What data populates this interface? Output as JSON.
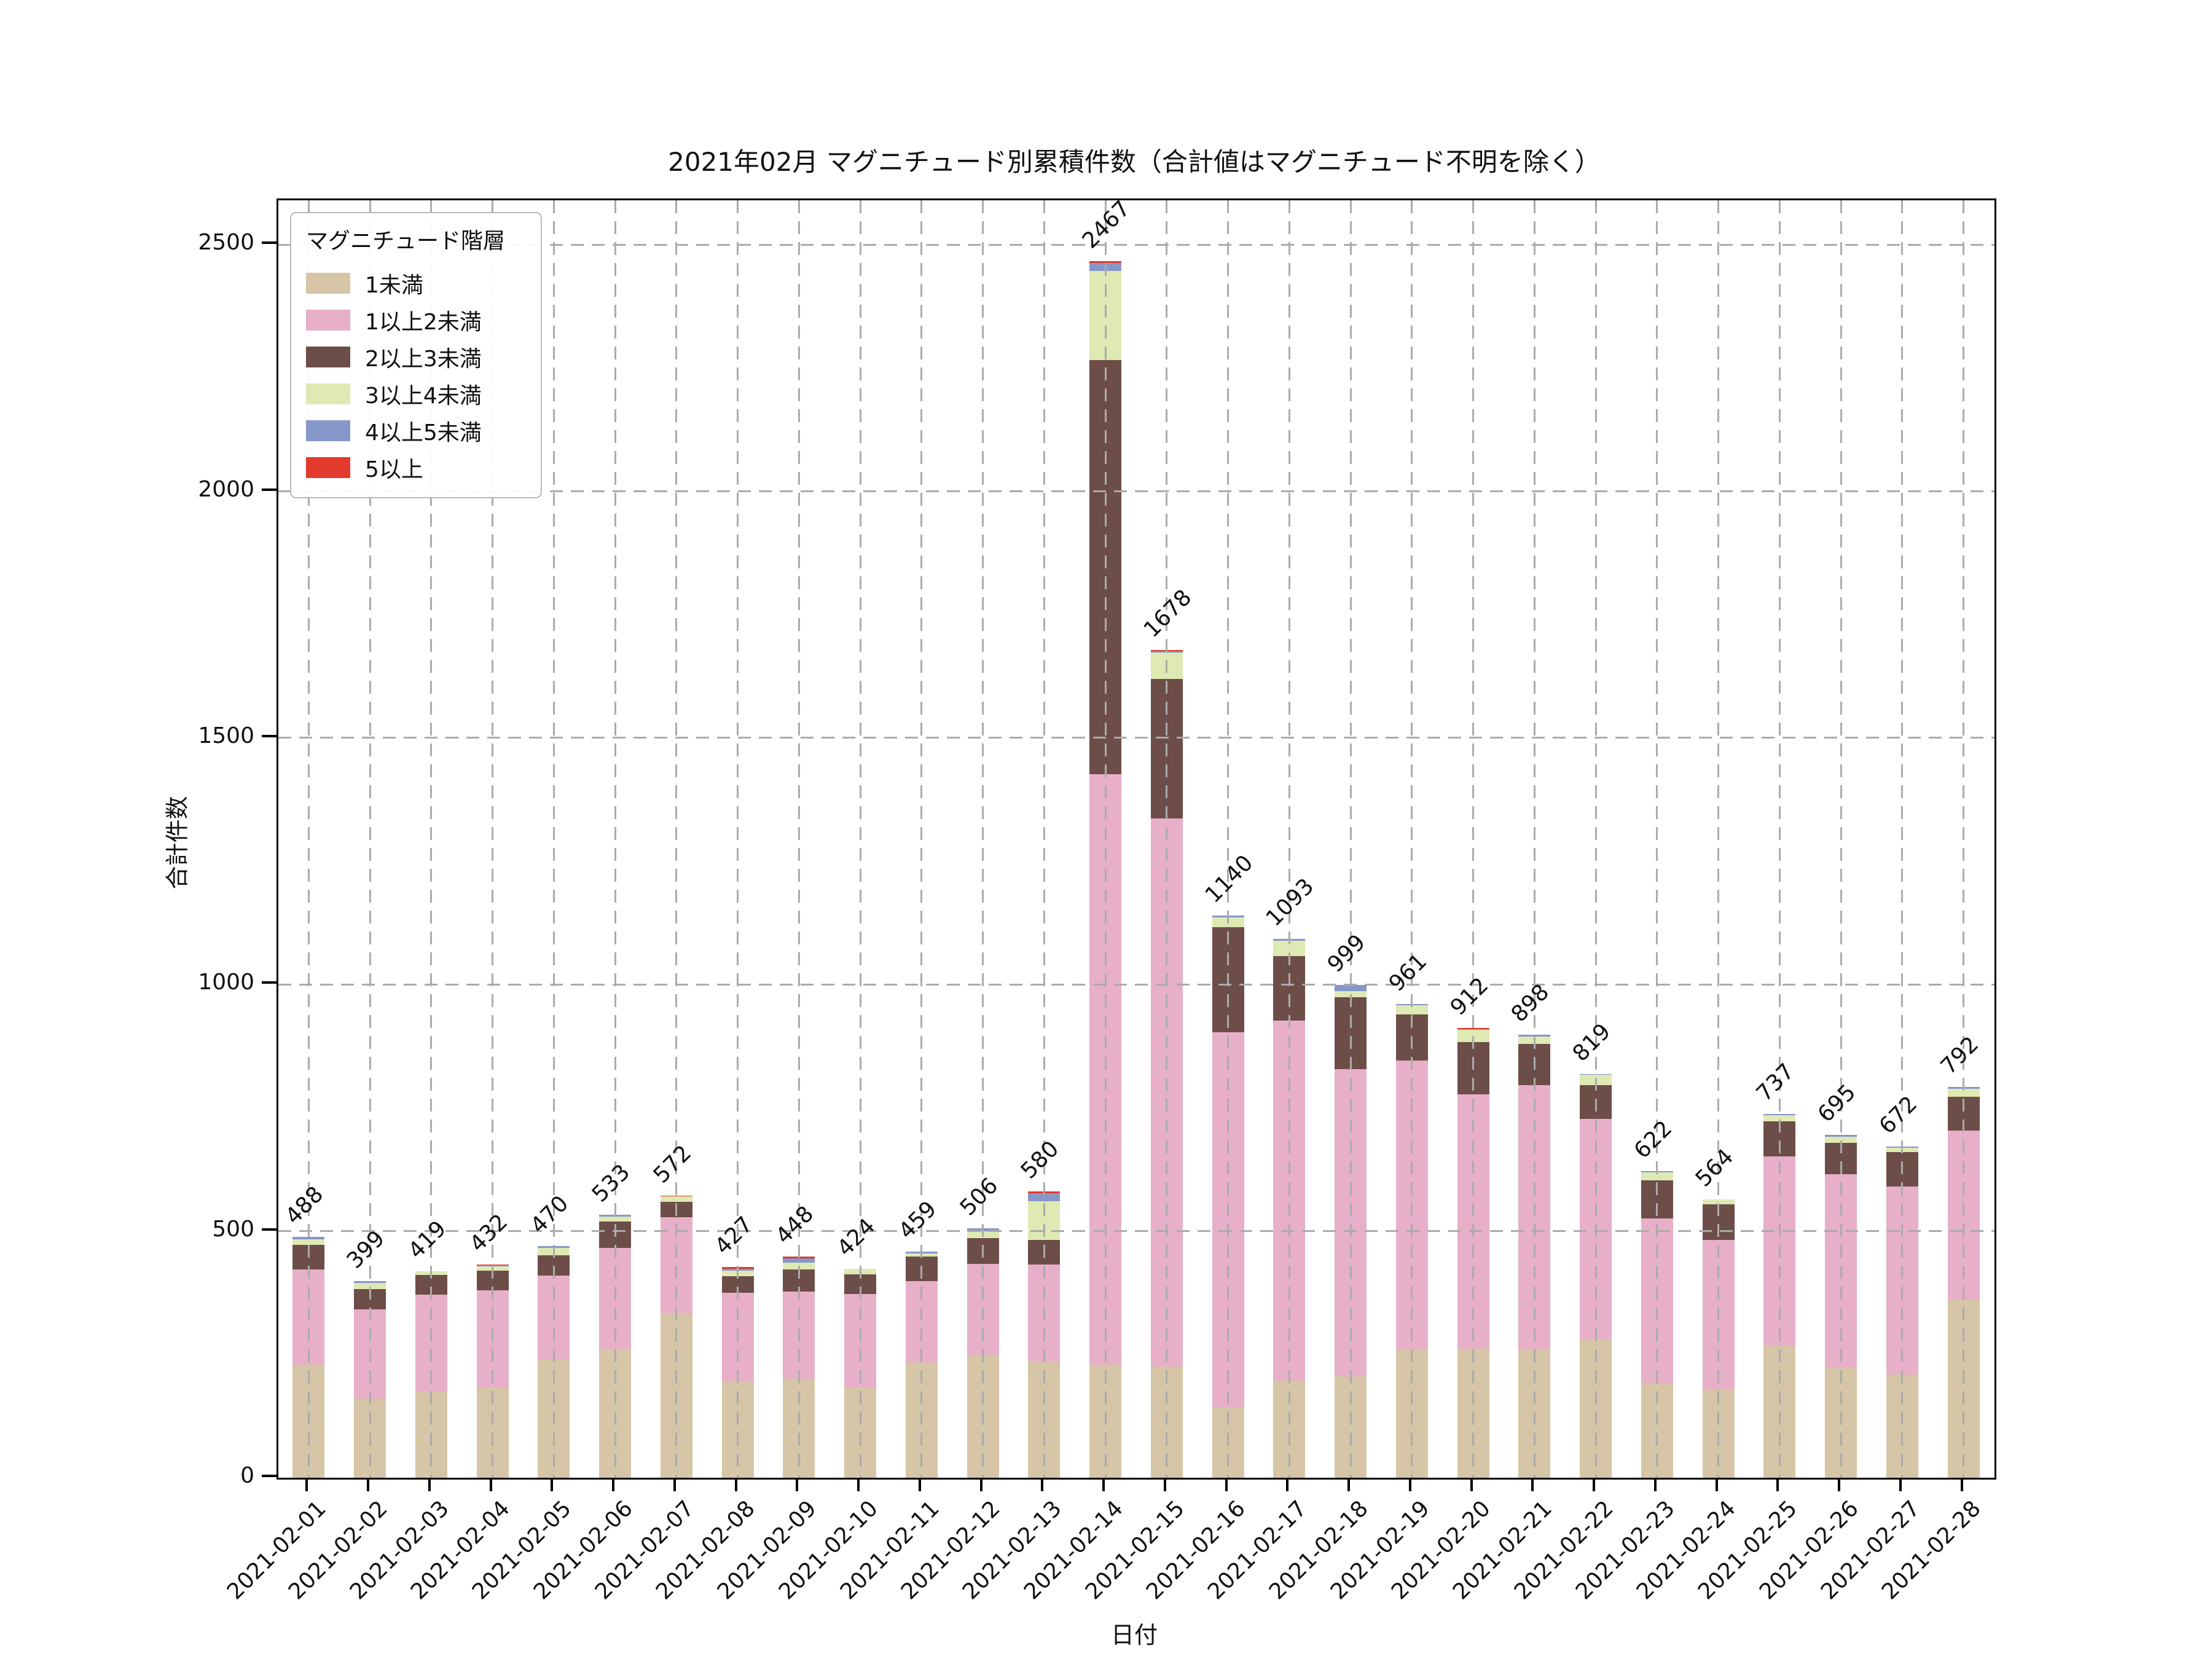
{
  "title": "2021年02月 マグニチュード別累積件数（合計値はマグニチュード不明を除く）",
  "axes": {
    "y_label": "合計件数",
    "x_label": "日付",
    "y_ticks": [
      0,
      500,
      1000,
      1500,
      2000,
      2500
    ],
    "ylim": [
      0,
      2590
    ],
    "grid": "dashed"
  },
  "legend": {
    "title": "マグニチュード階層",
    "position": "upper-left"
  },
  "colors": {
    "m0": "#d6c5a7",
    "m1": "#e7afc8",
    "m2": "#6d4d47",
    "m3": "#dfe9b3",
    "m4": "#8697ca",
    "m5": "#e23a2d",
    "grid": "#ababab",
    "spine": "#000000",
    "text": "#111111"
  },
  "chart_data": {
    "type": "bar",
    "stacked": true,
    "legend_position": "upper-left",
    "categories": [
      "2021-02-01",
      "2021-02-02",
      "2021-02-03",
      "2021-02-04",
      "2021-02-05",
      "2021-02-06",
      "2021-02-07",
      "2021-02-08",
      "2021-02-09",
      "2021-02-10",
      "2021-02-11",
      "2021-02-12",
      "2021-02-13",
      "2021-02-14",
      "2021-02-15",
      "2021-02-16",
      "2021-02-17",
      "2021-02-18",
      "2021-02-19",
      "2021-02-20",
      "2021-02-21",
      "2021-02-22",
      "2021-02-23",
      "2021-02-24",
      "2021-02-25",
      "2021-02-26",
      "2021-02-27",
      "2021-02-28"
    ],
    "series": [
      {
        "name": "1未満",
        "color": "#d6c5a7",
        "values": [
          229,
          161,
          176,
          183,
          239,
          261,
          334,
          196,
          200,
          183,
          234,
          249,
          237,
          229,
          226,
          143,
          197,
          206,
          259,
          262,
          261,
          281,
          191,
          180,
          268,
          224,
          209,
          361
        ]
      },
      {
        "name": "1以上2未満",
        "color": "#e7afc8",
        "values": [
          193,
          180,
          195,
          197,
          171,
          205,
          194,
          179,
          177,
          189,
          165,
          184,
          195,
          1198,
          1111,
          760,
          730,
          622,
          587,
          515,
          535,
          446,
          335,
          302,
          383,
          392,
          382,
          343
        ]
      },
      {
        "name": "2以上3未満",
        "color": "#6d4d47",
        "values": [
          50,
          41,
          40,
          40,
          41,
          53,
          32,
          34,
          45,
          40,
          50,
          53,
          50,
          839,
          283,
          213,
          131,
          146,
          93,
          106,
          84,
          69,
          77,
          72,
          71,
          63,
          69,
          69
        ]
      },
      {
        "name": "3以上4未満",
        "color": "#dfe9b3",
        "values": [
          11,
          13,
          8,
          8,
          15,
          11,
          10,
          11,
          14,
          12,
          6,
          14,
          79,
          181,
          53,
          20,
          31,
          13,
          19,
          26,
          15,
          21,
          16,
          10,
          13,
          13,
          9,
          16
        ]
      },
      {
        "name": "4以上5未満",
        "color": "#8697ca",
        "values": [
          5,
          4,
          0,
          3,
          4,
          3,
          0,
          4,
          9,
          0,
          4,
          6,
          16,
          16,
          3,
          4,
          4,
          12,
          3,
          1,
          3,
          2,
          3,
          0,
          2,
          3,
          3,
          3
        ]
      },
      {
        "name": "5以上",
        "color": "#e23a2d",
        "values": [
          0,
          0,
          0,
          1,
          0,
          0,
          2,
          3,
          3,
          0,
          0,
          0,
          3,
          4,
          2,
          0,
          0,
          0,
          0,
          2,
          0,
          0,
          0,
          0,
          0,
          0,
          0,
          0
        ]
      }
    ],
    "totals": [
      488,
      399,
      419,
      432,
      470,
      533,
      572,
      427,
      448,
      424,
      459,
      506,
      580,
      2467,
      1678,
      1140,
      1093,
      999,
      961,
      912,
      898,
      819,
      622,
      564,
      737,
      695,
      672,
      792
    ],
    "title": "2021年02月 マグニチュード別累積件数（合計値はマグニチュード不明を除く）",
    "xlabel": "日付",
    "ylabel": "合計件数",
    "ylim": [
      0,
      2590
    ]
  }
}
